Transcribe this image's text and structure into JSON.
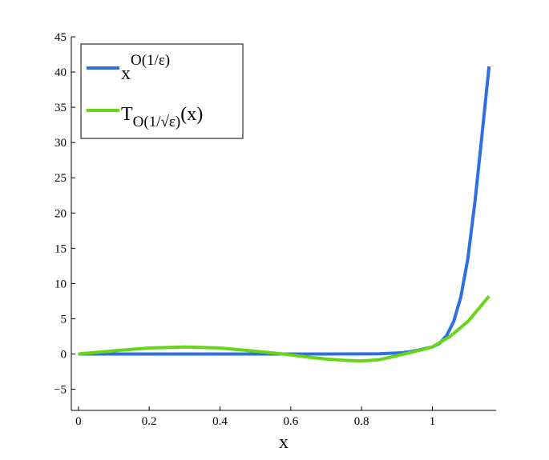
{
  "chart_data": {
    "type": "line",
    "title": "",
    "xlabel": "x",
    "ylabel": "",
    "xlim": [
      -0.02,
      1.18
    ],
    "ylim": [
      -8,
      45
    ],
    "x_ticks": [
      0,
      0.2,
      0.4,
      0.6,
      0.8,
      1
    ],
    "x_tick_labels": [
      "0",
      "0.2",
      "0.4",
      "0.6",
      "0.8",
      "1"
    ],
    "y_ticks": [
      -5,
      0,
      5,
      10,
      15,
      20,
      25,
      30,
      35,
      40,
      45
    ],
    "y_tick_labels": [
      "−5",
      "0",
      "5",
      "10",
      "15",
      "20",
      "25",
      "30",
      "35",
      "40",
      "45"
    ],
    "grid": false,
    "legend_position": "top-left",
    "series": [
      {
        "name": "x^O(1/ε)",
        "legend_base": "x",
        "legend_sup": "O(1/ε)",
        "color": "#2f6fe0",
        "x": [
          0,
          0.1,
          0.2,
          0.3,
          0.4,
          0.5,
          0.6,
          0.7,
          0.8,
          0.85,
          0.9,
          0.92,
          0.94,
          0.96,
          0.98,
          1.0,
          1.02,
          1.04,
          1.06,
          1.08,
          1.1,
          1.12,
          1.14,
          1.16
        ],
        "y": [
          0,
          0,
          0,
          0,
          0,
          0,
          0,
          0,
          0.01,
          0.04,
          0.14,
          0.22,
          0.35,
          0.53,
          0.78,
          1.0,
          1.5,
          2.6,
          4.6,
          8.0,
          13.5,
          21.5,
          31.0,
          40.8
        ]
      },
      {
        "name": "T_O(1/√ε)(x)",
        "legend_base": "T",
        "legend_sub": "O(1/√ε)",
        "legend_tail": "(x)",
        "color": "#66d617",
        "x": [
          0,
          0.1,
          0.2,
          0.3,
          0.4,
          0.5,
          0.58,
          0.65,
          0.7,
          0.75,
          0.8,
          0.85,
          0.9,
          0.95,
          1.0,
          1.05,
          1.1,
          1.16
        ],
        "y": [
          0,
          0.45,
          0.85,
          1.0,
          0.85,
          0.4,
          0,
          -0.45,
          -0.7,
          -0.9,
          -1.0,
          -0.8,
          -0.25,
          0.35,
          1.0,
          2.5,
          4.6,
          8.2
        ]
      }
    ]
  }
}
